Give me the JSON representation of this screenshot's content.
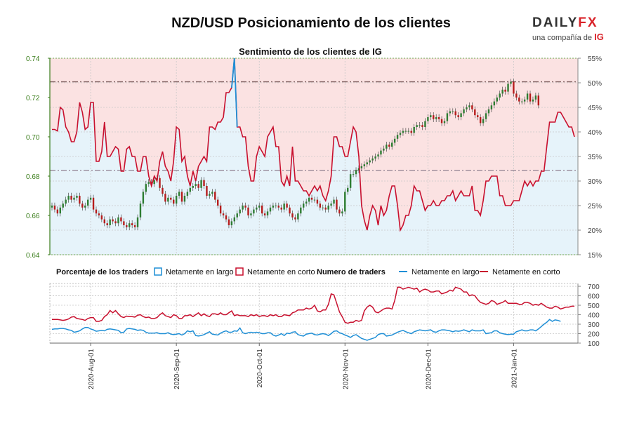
{
  "header": {
    "title": "NZD/USD Posicionamiento de los clientes",
    "subtitle": "Sentimiento de los clientes de IG",
    "logo_main": "DAILY",
    "logo_fx": "FX",
    "logo_sub": "una compañía de",
    "logo_ig": "IG"
  },
  "colors": {
    "long": "#1f8fd6",
    "short": "#c8102e",
    "up_candle": "#2e7d32",
    "down_candle": "#b71c1c",
    "long_zone": "#e6f3fa",
    "short_zone": "#fbe2e2",
    "left_axis": "#3a7d1a"
  },
  "chart_data": [
    {
      "type": "line",
      "name": "main",
      "title": "Sentimiento de los clientes de IG",
      "left_axis": {
        "ticks": [
          "0.64",
          "0.66",
          "0.68",
          "0.70",
          "0.72",
          "0.74"
        ],
        "ylim": [
          0.64,
          0.74
        ]
      },
      "right_axis": {
        "ticks": [
          "15%",
          "20%",
          "25%",
          "30%",
          "35%",
          "40%",
          "45%",
          "50%",
          "55%"
        ],
        "ylim": [
          15,
          55
        ]
      },
      "x_ticks": [
        "2020-Aug-01",
        "2020-Sep-01",
        "2020-Oct-01",
        "2020-Nov-01",
        "2020-Dec-01",
        "2021-Jan-01"
      ],
      "reference_lines": {
        "price_high": 0.728,
        "price_low": 0.683
      },
      "series": [
        {
          "name": "Netamente en corto",
          "values": [
            40.5,
            40.5,
            40.2,
            45,
            44.5,
            41,
            40,
            38,
            38,
            40,
            46,
            44,
            40.5,
            41,
            46,
            46,
            34,
            34,
            36,
            42,
            35,
            35,
            36,
            37,
            36.5,
            32,
            32,
            36.5,
            37,
            35,
            35,
            32,
            32,
            35,
            35,
            31,
            29,
            31,
            30,
            34,
            36,
            33,
            32,
            30,
            34,
            41,
            40.5,
            34,
            35,
            31,
            29,
            32,
            30,
            33,
            34,
            35,
            34,
            41,
            41,
            40.5,
            42,
            42,
            43,
            48,
            48,
            49,
            55,
            41,
            41,
            39,
            39,
            33,
            30,
            30,
            35,
            37,
            36,
            35,
            39,
            40,
            41,
            37,
            37,
            30,
            29,
            31,
            29,
            37,
            30,
            30,
            29,
            28,
            28,
            27,
            28,
            29,
            28,
            29,
            27,
            26,
            28,
            31,
            39,
            39,
            37,
            37,
            35,
            35,
            38,
            41,
            40,
            35,
            25,
            22,
            20,
            23,
            25,
            24,
            21,
            25,
            23,
            24,
            27,
            29,
            29,
            25,
            20,
            21,
            23,
            23,
            25,
            29,
            28,
            28,
            26,
            24,
            25,
            25,
            26,
            25,
            25,
            26,
            26,
            27,
            27,
            28,
            26,
            27,
            28,
            27,
            27,
            27,
            29,
            24,
            24,
            23,
            26,
            30,
            30,
            31,
            31,
            31,
            27,
            27,
            25,
            25,
            25,
            26,
            26,
            26,
            28,
            30,
            29,
            30,
            29,
            30,
            30,
            32,
            32,
            37,
            42,
            42,
            42,
            44,
            44,
            43,
            42,
            41,
            41,
            39
          ]
        },
        {
          "name": "Netamente en largo",
          "values": [
            59.5,
            59.5,
            59.8,
            55,
            55.5,
            59,
            60,
            62,
            62,
            60,
            54,
            56,
            59.5,
            59,
            54,
            54,
            66,
            66,
            64,
            58,
            65,
            65,
            64,
            63,
            63.5,
            68,
            68,
            63.5,
            63,
            65,
            65,
            68,
            68,
            65,
            65,
            69,
            71,
            69,
            70,
            66,
            64,
            67,
            68,
            70,
            66,
            59,
            59.5,
            66,
            65,
            69,
            71,
            68,
            70,
            67,
            66,
            65,
            66,
            59,
            59,
            59.5,
            58,
            58,
            57,
            52,
            52,
            51,
            45,
            59,
            59,
            61,
            61,
            67,
            70,
            70,
            65,
            63,
            64,
            65,
            61,
            60,
            59,
            63,
            63,
            70,
            71,
            69,
            71,
            63,
            70,
            70,
            71,
            72,
            72,
            73,
            72,
            71,
            72,
            71,
            73,
            74,
            72,
            69,
            61,
            61,
            63,
            63,
            65,
            65,
            62,
            59,
            60,
            65,
            75,
            78,
            80,
            77,
            75,
            76,
            79,
            75,
            77,
            76,
            73,
            71,
            71,
            75,
            80,
            79,
            77,
            77,
            75,
            71,
            72,
            72,
            74,
            76,
            75,
            75,
            74,
            75,
            75,
            74,
            74,
            73,
            73,
            72,
            74,
            73,
            72,
            73,
            73,
            73,
            71,
            76,
            76,
            77,
            74,
            70,
            70,
            69,
            69,
            69,
            73,
            73,
            75,
            75,
            75,
            74,
            74,
            74,
            72,
            70,
            71,
            70,
            71,
            70,
            70,
            68,
            68,
            63,
            58,
            58,
            58,
            56,
            56,
            57,
            58,
            59,
            59,
            61
          ]
        }
      ],
      "candles_close": [
        0.665,
        0.663,
        0.661,
        0.664,
        0.666,
        0.668,
        0.67,
        0.668,
        0.669,
        0.67,
        0.666,
        0.664,
        0.665,
        0.668,
        0.669,
        0.663,
        0.661,
        0.66,
        0.658,
        0.656,
        0.655,
        0.658,
        0.657,
        0.656,
        0.659,
        0.657,
        0.655,
        0.654,
        0.656,
        0.655,
        0.654,
        0.659,
        0.666,
        0.672,
        0.676,
        0.677,
        0.676,
        0.678,
        0.679,
        0.674,
        0.671,
        0.667,
        0.669,
        0.668,
        0.666,
        0.67,
        0.672,
        0.667,
        0.67,
        0.672,
        0.674,
        0.675,
        0.676,
        0.674,
        0.678,
        0.675,
        0.67,
        0.671,
        0.672,
        0.668,
        0.665,
        0.661,
        0.66,
        0.658,
        0.655,
        0.657,
        0.659,
        0.661,
        0.663,
        0.665,
        0.664,
        0.66,
        0.661,
        0.663,
        0.664,
        0.665,
        0.661,
        0.66,
        0.662,
        0.664,
        0.665,
        0.665,
        0.664,
        0.663,
        0.666,
        0.664,
        0.661,
        0.659,
        0.658,
        0.661,
        0.664,
        0.666,
        0.667,
        0.669,
        0.668,
        0.668,
        0.666,
        0.664,
        0.664,
        0.663,
        0.665,
        0.666,
        0.668,
        0.663,
        0.661,
        0.662,
        0.672,
        0.674,
        0.681,
        0.681,
        0.683,
        0.684,
        0.685,
        0.686,
        0.687,
        0.688,
        0.689,
        0.69,
        0.691,
        0.693,
        0.694,
        0.696,
        0.695,
        0.697,
        0.699,
        0.701,
        0.702,
        0.703,
        0.703,
        0.703,
        0.702,
        0.705,
        0.706,
        0.706,
        0.705,
        0.708,
        0.71,
        0.711,
        0.709,
        0.71,
        0.709,
        0.707,
        0.708,
        0.712,
        0.713,
        0.713,
        0.711,
        0.71,
        0.712,
        0.714,
        0.715,
        0.716,
        0.714,
        0.711,
        0.71,
        0.707,
        0.709,
        0.712,
        0.714,
        0.716,
        0.718,
        0.72,
        0.722,
        0.724,
        0.723,
        0.727,
        0.728,
        0.722,
        0.72,
        0.718,
        0.718,
        0.719,
        0.722,
        0.718,
        0.719,
        0.721,
        0.716
      ]
    },
    {
      "type": "line",
      "name": "traders",
      "legend_title_left": "Porcentaje de los traders",
      "legend_title_right": "Numero de traders",
      "y_ticks": [
        "100",
        "200",
        "300",
        "400",
        "500",
        "600",
        "700"
      ],
      "ylim": [
        100,
        730
      ],
      "series": [
        {
          "name": "Netamente en corto",
          "values": [
            350,
            350,
            350,
            345,
            340,
            345,
            355,
            375,
            380,
            360,
            355,
            350,
            340,
            360,
            370,
            370,
            330,
            330,
            340,
            380,
            400,
            445,
            420,
            445,
            410,
            380,
            370,
            385,
            380,
            380,
            375,
            395,
            400,
            380,
            370,
            375,
            360,
            360,
            370,
            400,
            420,
            390,
            380,
            370,
            400,
            390,
            360,
            360,
            390,
            390,
            400,
            380,
            400,
            420,
            390,
            410,
            390,
            380,
            410,
            410,
            400,
            420,
            400,
            400,
            420,
            440,
            390,
            400,
            390,
            390,
            390,
            380,
            400,
            390,
            400,
            380,
            390,
            390,
            380,
            400,
            390,
            400,
            380,
            380,
            400,
            395,
            390,
            420,
            430,
            450,
            450,
            450,
            470,
            460,
            470,
            500,
            440,
            430,
            450,
            450,
            510,
            620,
            610,
            520,
            430,
            380,
            320,
            310,
            320,
            320,
            340,
            330,
            340,
            440,
            480,
            500,
            480,
            430,
            420,
            440,
            460,
            470,
            470,
            460,
            550,
            690,
            690,
            670,
            680,
            690,
            680,
            670,
            680,
            640,
            660,
            670,
            660,
            640,
            640,
            650,
            650,
            620,
            630,
            640,
            660,
            650,
            690,
            680,
            670,
            640,
            640,
            600,
            610,
            600,
            560,
            530,
            520,
            510,
            520,
            550,
            540,
            510,
            520,
            530,
            550,
            520,
            520,
            520,
            520,
            510,
            510,
            530,
            530,
            520,
            500,
            510,
            500,
            520,
            500,
            480,
            470,
            470,
            490,
            480,
            460,
            470,
            480,
            480,
            490,
            490
          ]
        },
        {
          "name": "Netamente en largo",
          "values": [
            245,
            250,
            250,
            255,
            255,
            250,
            240,
            235,
            215,
            220,
            230,
            250,
            265,
            265,
            250,
            240,
            225,
            230,
            235,
            230,
            245,
            250,
            245,
            240,
            235,
            210,
            215,
            250,
            255,
            250,
            245,
            235,
            240,
            235,
            215,
            205,
            205,
            205,
            210,
            200,
            200,
            200,
            210,
            195,
            190,
            195,
            200,
            185,
            200,
            230,
            220,
            230,
            180,
            175,
            180,
            190,
            205,
            220,
            195,
            190,
            185,
            205,
            220,
            230,
            215,
            215,
            230,
            225,
            260,
            210,
            200,
            210,
            215,
            210,
            215,
            210,
            200,
            200,
            210,
            210,
            185,
            175,
            185,
            200,
            180,
            205,
            200,
            215,
            220,
            190,
            180,
            175,
            195,
            200,
            205,
            190,
            185,
            195,
            200,
            195,
            180,
            200,
            225,
            230,
            210,
            200,
            185,
            175,
            160,
            180,
            190,
            170,
            150,
            140,
            130,
            140,
            150,
            160,
            190,
            200,
            200,
            175,
            180,
            185,
            200,
            215,
            225,
            235,
            220,
            210,
            200,
            220,
            230,
            240,
            235,
            230,
            235,
            240,
            220,
            215,
            230,
            240,
            240,
            235,
            230,
            220,
            230,
            225,
            230,
            240,
            230,
            220,
            240,
            230,
            230,
            230,
            240,
            200,
            205,
            210,
            230,
            230,
            210,
            200,
            195,
            190,
            195,
            195,
            220,
            230,
            240,
            230,
            230,
            240,
            240,
            230,
            250,
            275,
            300,
            320,
            350,
            330,
            345,
            340,
            330
          ]
        }
      ]
    }
  ]
}
